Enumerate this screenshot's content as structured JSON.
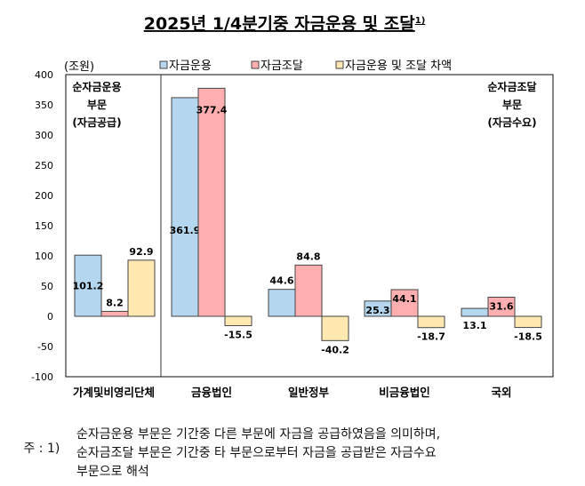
{
  "chart_data": {
    "type": "bar",
    "title": "2025년 1/4분기중 자금운용 및 조달",
    "title_sup": "1)",
    "unit": "(조원)",
    "categories": [
      "가계및비영리단체",
      "금융법인",
      "일반정부",
      "비금융법인",
      "국외"
    ],
    "series": [
      {
        "name": "자금운용",
        "color": "#b4d6ee",
        "values": [
          101.2,
          361.9,
          44.6,
          25.3,
          13.1
        ]
      },
      {
        "name": "자금조달",
        "color": "#ffafaf",
        "values": [
          8.2,
          377.4,
          84.8,
          44.1,
          31.6
        ]
      },
      {
        "name": "자금운용 및 조달 차액",
        "color": "#ffe9b0",
        "values": [
          92.9,
          -15.5,
          -40.2,
          -18.7,
          -18.5
        ]
      }
    ],
    "ylim": [
      -100,
      400
    ],
    "yticks": [
      400,
      350,
      300,
      250,
      200,
      150,
      100,
      50,
      0,
      -50,
      -100
    ],
    "annotations": {
      "left": [
        "순자금운용",
        "부문",
        "(자금공급)"
      ],
      "right": [
        "순자금조달",
        "부문",
        "(자금수요)"
      ]
    }
  },
  "footnote": {
    "prefix": "주 : 1)",
    "lines": [
      "순자금운용 부문은 기간중 다른 부문에 자금을 공급하였음을 의미하며,",
      "순자금조달 부문은 기간중 타 부문으로부터 자금을 공급받은 자금수요",
      "부문으로 해석"
    ]
  }
}
